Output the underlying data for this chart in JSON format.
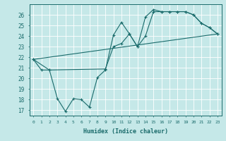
{
  "xlabel": "Humidex (Indice chaleur)",
  "background_color": "#c5e8e8",
  "grid_color": "#ffffff",
  "line_color": "#1a6b6b",
  "xlim": [
    -0.5,
    23.5
  ],
  "ylim": [
    16.5,
    27.0
  ],
  "yticks": [
    17,
    18,
    19,
    20,
    21,
    22,
    23,
    24,
    25,
    26
  ],
  "xticks": [
    0,
    1,
    2,
    3,
    4,
    5,
    6,
    7,
    8,
    9,
    10,
    11,
    12,
    13,
    14,
    15,
    16,
    17,
    18,
    19,
    20,
    21,
    22,
    23
  ],
  "series1_x": [
    0,
    1,
    2,
    3,
    4,
    5,
    6,
    7,
    8,
    9,
    10,
    11,
    12,
    13,
    14,
    15,
    16,
    17,
    18,
    19,
    20,
    21,
    22,
    23
  ],
  "series1_y": [
    21.8,
    20.8,
    20.8,
    18.1,
    16.9,
    18.1,
    18.0,
    17.3,
    20.1,
    20.8,
    24.1,
    25.3,
    24.2,
    23.0,
    25.8,
    26.5,
    26.3,
    26.3,
    26.3,
    26.3,
    26.0,
    25.2,
    24.8,
    24.2
  ],
  "series2_x": [
    0,
    23
  ],
  "series2_y": [
    21.8,
    24.2
  ],
  "series3_x": [
    0,
    2,
    9,
    10,
    11,
    12,
    13,
    14,
    15,
    16,
    17,
    18,
    19,
    20,
    21,
    22,
    23
  ],
  "series3_y": [
    21.8,
    20.8,
    20.9,
    23.0,
    23.3,
    24.2,
    23.0,
    24.0,
    26.3,
    26.3,
    26.3,
    26.3,
    26.3,
    26.0,
    25.2,
    24.8,
    24.2
  ]
}
